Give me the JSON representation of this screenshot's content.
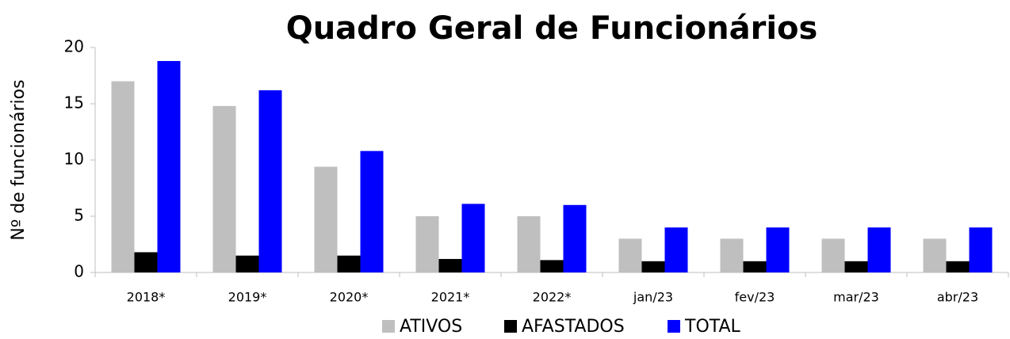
{
  "chart_data": {
    "type": "bar",
    "title": "Quadro Geral de Funcionários",
    "y_label": "Nº de funcionários",
    "categories": [
      "2018*",
      "2019*",
      "2020*",
      "2021*",
      "2022*",
      "jan/23",
      "fev/23",
      "mar/23",
      "abr/23"
    ],
    "series": [
      {
        "name": "ATIVOS",
        "color": "#bfbfbf",
        "values": [
          17,
          14.8,
          9.4,
          5,
          5,
          3,
          3,
          3,
          3
        ]
      },
      {
        "name": "AFASTADOS",
        "color": "#000000",
        "values": [
          1.8,
          1.5,
          1.5,
          1.2,
          1.1,
          1,
          1,
          1,
          1
        ]
      },
      {
        "name": "TOTAL",
        "color": "#0000ff",
        "values": [
          18.8,
          16.2,
          10.8,
          6.1,
          6,
          4,
          4,
          4,
          4
        ]
      }
    ],
    "ylim": [
      0,
      20
    ],
    "yticks": [
      0,
      5,
      10,
      15,
      20
    ],
    "legend": "bottom"
  }
}
